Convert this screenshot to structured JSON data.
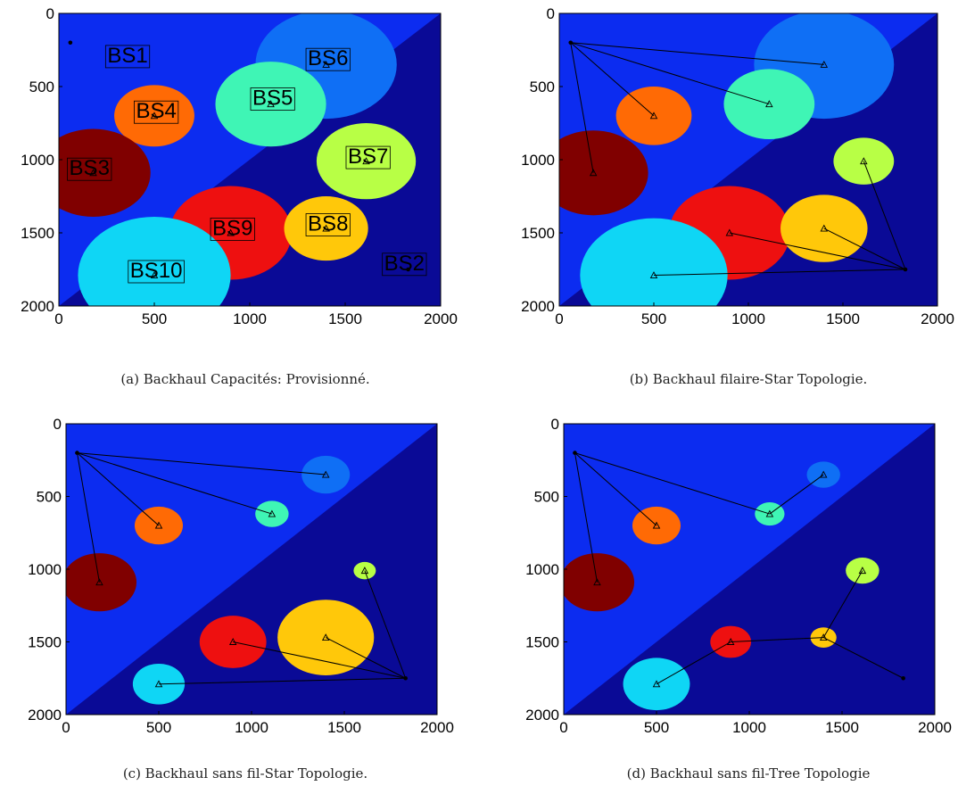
{
  "chart_data": [
    {
      "type": "heatmap",
      "caption": "(a) Backhaul Capacités: Provisionné.",
      "xlim": [
        0,
        2000
      ],
      "ylim": [
        0,
        2000
      ],
      "x_ticks": [
        "0",
        "500",
        "1000",
        "1500",
        "2000"
      ],
      "y_ticks": [
        "0",
        "500",
        "1000",
        "1500",
        "2000"
      ],
      "hub": {
        "label": "BS1",
        "x": 60,
        "y": 200
      },
      "sink": {
        "label": "BS2",
        "x": 1830,
        "y": 1750
      },
      "stations": [
        {
          "label": "BS6",
          "x": 1400,
          "y": 350,
          "r": 370,
          "color": "#0f6ff5"
        },
        {
          "label": "BS5",
          "x": 1110,
          "y": 620,
          "r": 290,
          "color": "#3ff5b5"
        },
        {
          "label": "BS4",
          "x": 500,
          "y": 700,
          "r": 210,
          "color": "#ff6a05"
        },
        {
          "label": "BS7",
          "x": 1610,
          "y": 1010,
          "r": 260,
          "color": "#b8ff45"
        },
        {
          "label": "BS3",
          "x": 180,
          "y": 1090,
          "r": 300,
          "color": "#800000"
        },
        {
          "label": "BS9",
          "x": 900,
          "y": 1500,
          "r": 320,
          "color": "#ee1010"
        },
        {
          "label": "BS8",
          "x": 1400,
          "y": 1470,
          "r": 220,
          "color": "#ffc80a"
        },
        {
          "label": "BS10",
          "x": 500,
          "y": 1790,
          "r": 400,
          "color": "#0fd6f5"
        }
      ],
      "links": []
    },
    {
      "type": "heatmap",
      "caption": "(b) Backhaul filaire-Star Topologie.",
      "xlim": [
        0,
        2000
      ],
      "ylim": [
        0,
        2000
      ],
      "x_ticks": [
        "0",
        "500",
        "1000",
        "1500",
        "2000"
      ],
      "y_ticks": [
        "0",
        "500",
        "1000",
        "1500",
        "2000"
      ],
      "hub": {
        "x": 60,
        "y": 200
      },
      "sink": {
        "x": 1830,
        "y": 1750
      },
      "stations": [
        {
          "x": 1400,
          "y": 350,
          "r": 370,
          "color": "#0f6ff5"
        },
        {
          "x": 1110,
          "y": 620,
          "r": 240,
          "color": "#3ff5b5"
        },
        {
          "x": 500,
          "y": 700,
          "r": 200,
          "color": "#ff6a05"
        },
        {
          "x": 1610,
          "y": 1010,
          "r": 160,
          "color": "#b8ff45"
        },
        {
          "x": 180,
          "y": 1090,
          "r": 290,
          "color": "#800000"
        },
        {
          "x": 900,
          "y": 1500,
          "r": 320,
          "color": "#ee1010"
        },
        {
          "x": 1400,
          "y": 1470,
          "r": 230,
          "color": "#ffc80a"
        },
        {
          "x": 500,
          "y": 1790,
          "r": 390,
          "color": "#0fd6f5"
        }
      ],
      "links": [
        [
          [
            60,
            200
          ],
          [
            1400,
            350
          ]
        ],
        [
          [
            60,
            200
          ],
          [
            1110,
            620
          ]
        ],
        [
          [
            60,
            200
          ],
          [
            500,
            700
          ]
        ],
        [
          [
            60,
            200
          ],
          [
            180,
            1090
          ]
        ],
        [
          [
            1830,
            1750
          ],
          [
            1610,
            1010
          ]
        ],
        [
          [
            1830,
            1750
          ],
          [
            1400,
            1470
          ]
        ],
        [
          [
            1830,
            1750
          ],
          [
            900,
            1500
          ]
        ],
        [
          [
            1830,
            1750
          ],
          [
            500,
            1790
          ]
        ]
      ]
    },
    {
      "type": "heatmap",
      "caption": "(c) Backhaul sans fil-Star Topologie.",
      "xlim": [
        0,
        2000
      ],
      "ylim": [
        0,
        2000
      ],
      "x_ticks": [
        "0",
        "500",
        "1000",
        "1500",
        "2000"
      ],
      "y_ticks": [
        "0",
        "500",
        "1000",
        "1500",
        "2000"
      ],
      "hub": {
        "x": 60,
        "y": 200
      },
      "sink": {
        "x": 1830,
        "y": 1750
      },
      "stations": [
        {
          "x": 1400,
          "y": 350,
          "r": 130,
          "color": "#0f6ff5"
        },
        {
          "x": 1110,
          "y": 620,
          "r": 90,
          "color": "#3ff5b5"
        },
        {
          "x": 500,
          "y": 700,
          "r": 130,
          "color": "#ff6a05"
        },
        {
          "x": 1610,
          "y": 1010,
          "r": 60,
          "color": "#b8ff45"
        },
        {
          "x": 180,
          "y": 1090,
          "r": 200,
          "color": "#800000"
        },
        {
          "x": 900,
          "y": 1500,
          "r": 180,
          "color": "#ee1010"
        },
        {
          "x": 1400,
          "y": 1470,
          "r": 260,
          "color": "#ffc80a"
        },
        {
          "x": 500,
          "y": 1790,
          "r": 140,
          "color": "#0fd6f5"
        }
      ],
      "links": [
        [
          [
            60,
            200
          ],
          [
            1400,
            350
          ]
        ],
        [
          [
            60,
            200
          ],
          [
            1110,
            620
          ]
        ],
        [
          [
            60,
            200
          ],
          [
            500,
            700
          ]
        ],
        [
          [
            60,
            200
          ],
          [
            180,
            1090
          ]
        ],
        [
          [
            1830,
            1750
          ],
          [
            1610,
            1010
          ]
        ],
        [
          [
            1830,
            1750
          ],
          [
            1400,
            1470
          ]
        ],
        [
          [
            1830,
            1750
          ],
          [
            900,
            1500
          ]
        ],
        [
          [
            1830,
            1750
          ],
          [
            500,
            1790
          ]
        ]
      ]
    },
    {
      "type": "heatmap",
      "caption": "(d) Backhaul sans fil-Tree Topologie",
      "xlim": [
        0,
        2000
      ],
      "ylim": [
        0,
        2000
      ],
      "x_ticks": [
        "0",
        "500",
        "1000",
        "1500",
        "2000"
      ],
      "y_ticks": [
        "0",
        "500",
        "1000",
        "1500",
        "2000"
      ],
      "hub": {
        "x": 60,
        "y": 200
      },
      "sink": {
        "x": 1830,
        "y": 1750
      },
      "stations": [
        {
          "x": 1400,
          "y": 350,
          "r": 90,
          "color": "#0f6ff5"
        },
        {
          "x": 1110,
          "y": 620,
          "r": 80,
          "color": "#3ff5b5"
        },
        {
          "x": 500,
          "y": 700,
          "r": 130,
          "color": "#ff6a05"
        },
        {
          "x": 1610,
          "y": 1010,
          "r": 90,
          "color": "#b8ff45"
        },
        {
          "x": 180,
          "y": 1090,
          "r": 200,
          "color": "#800000"
        },
        {
          "x": 900,
          "y": 1500,
          "r": 110,
          "color": "#ee1010"
        },
        {
          "x": 1400,
          "y": 1470,
          "r": 70,
          "color": "#ffc80a"
        },
        {
          "x": 500,
          "y": 1790,
          "r": 180,
          "color": "#0fd6f5"
        }
      ],
      "links": [
        [
          [
            60,
            200
          ],
          [
            1110,
            620
          ]
        ],
        [
          [
            1110,
            620
          ],
          [
            1400,
            350
          ]
        ],
        [
          [
            60,
            200
          ],
          [
            500,
            700
          ]
        ],
        [
          [
            60,
            200
          ],
          [
            180,
            1090
          ]
        ],
        [
          [
            1610,
            1010
          ],
          [
            1400,
            1470
          ]
        ],
        [
          [
            1400,
            1470
          ],
          [
            900,
            1500
          ]
        ],
        [
          [
            900,
            1500
          ],
          [
            500,
            1790
          ]
        ],
        [
          [
            1400,
            1470
          ],
          [
            1830,
            1750
          ]
        ]
      ]
    }
  ],
  "colors": {
    "upper_region": "#0c2cf0",
    "lower_region": "#0a0a96",
    "link": "#000000"
  }
}
